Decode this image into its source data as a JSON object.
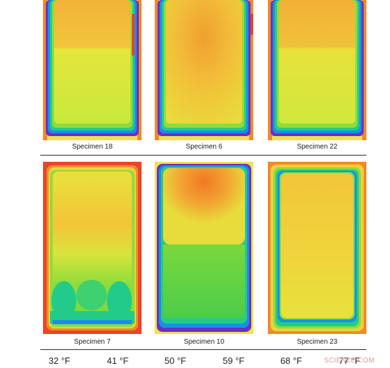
{
  "specimens_top": [
    {
      "label": "Specimen 18"
    },
    {
      "label": "Specimen 6"
    },
    {
      "label": "Specimen 22"
    }
  ],
  "specimens_bottom": [
    {
      "label": "Specimen 7"
    },
    {
      "label": "Specimen 10"
    },
    {
      "label": "Specimen 23"
    }
  ],
  "temperature_scale": [
    "32 °F",
    "41 °F",
    "50 °F",
    "59 °F",
    "68 °F",
    "77 °F"
  ],
  "watermark": "SCIENZE.COM",
  "colors": {
    "hot": "#f07a22",
    "warm": "#f5c23a",
    "mild": "#e2ec3c",
    "cool": "#8fdc3c",
    "cold": "#22cc88",
    "colder": "#1a8fe8",
    "coldest": "#6a2fc8",
    "edge": "#e8452a"
  }
}
